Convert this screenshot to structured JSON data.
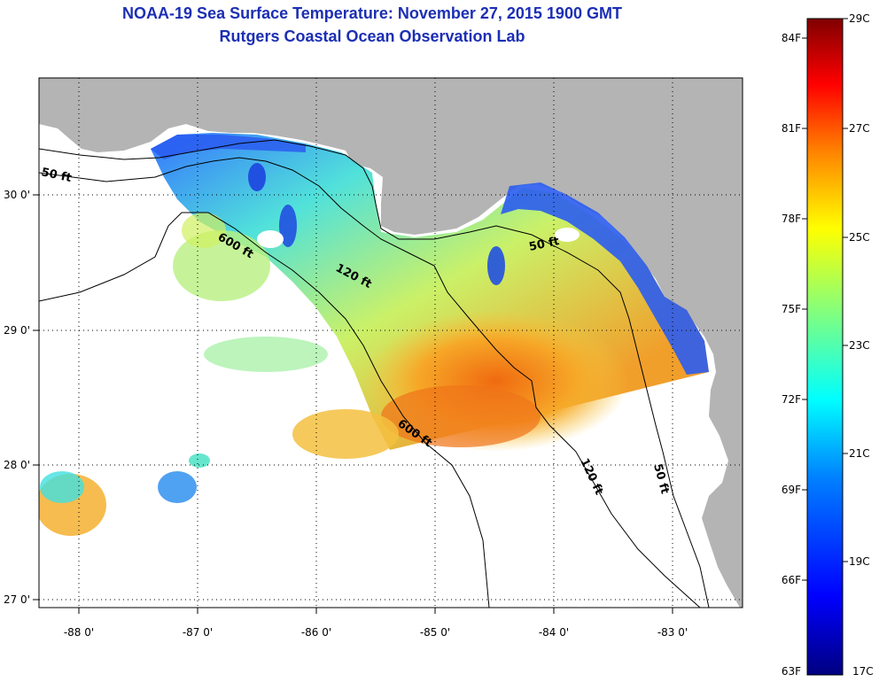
{
  "title": "NOAA-19 Sea Surface Temperature:  November 27, 2015 1900 GMT",
  "subtitle": "Rutgers Coastal Ocean Observation Lab",
  "map": {
    "lon_ticks": [
      {
        "value": -88,
        "label": "-88 0'"
      },
      {
        "value": -87,
        "label": "-87 0'"
      },
      {
        "value": -86,
        "label": "-86 0'"
      },
      {
        "value": -85,
        "label": "-85 0'"
      },
      {
        "value": -84,
        "label": "-84 0'"
      },
      {
        "value": -83,
        "label": "-83 0'"
      }
    ],
    "lat_ticks": [
      {
        "value": 30,
        "label": "30 0'"
      },
      {
        "value": 29,
        "label": "29 0'"
      },
      {
        "value": 28,
        "label": "28 0'"
      },
      {
        "value": 27,
        "label": "27 0'"
      }
    ],
    "contour_labels": [
      {
        "id": "c50w",
        "text": "50 ft"
      },
      {
        "id": "c600a",
        "text": "600 ft"
      },
      {
        "id": "c120a",
        "text": "120 ft"
      },
      {
        "id": "c50e",
        "text": "50 ft"
      },
      {
        "id": "c600b",
        "text": "600 ft"
      },
      {
        "id": "c120b",
        "text": "120 ft"
      },
      {
        "id": "c50s",
        "text": "50 ft"
      }
    ]
  },
  "colorbar": {
    "f_labels": [
      "84F",
      "81F",
      "78F",
      "75F",
      "72F",
      "69F",
      "66F",
      "63F"
    ],
    "c_labels": [
      "29C",
      "27C",
      "25C",
      "23C",
      "21C",
      "19C",
      "17C"
    ],
    "colors": [
      "#800000",
      "#ff0000",
      "#ff8000",
      "#ffff00",
      "#80ff80",
      "#00ffff",
      "#0080ff",
      "#0000ff",
      "#000080"
    ]
  },
  "colors": {
    "land": "#b4b4b4",
    "title": "#1c2fb4"
  }
}
